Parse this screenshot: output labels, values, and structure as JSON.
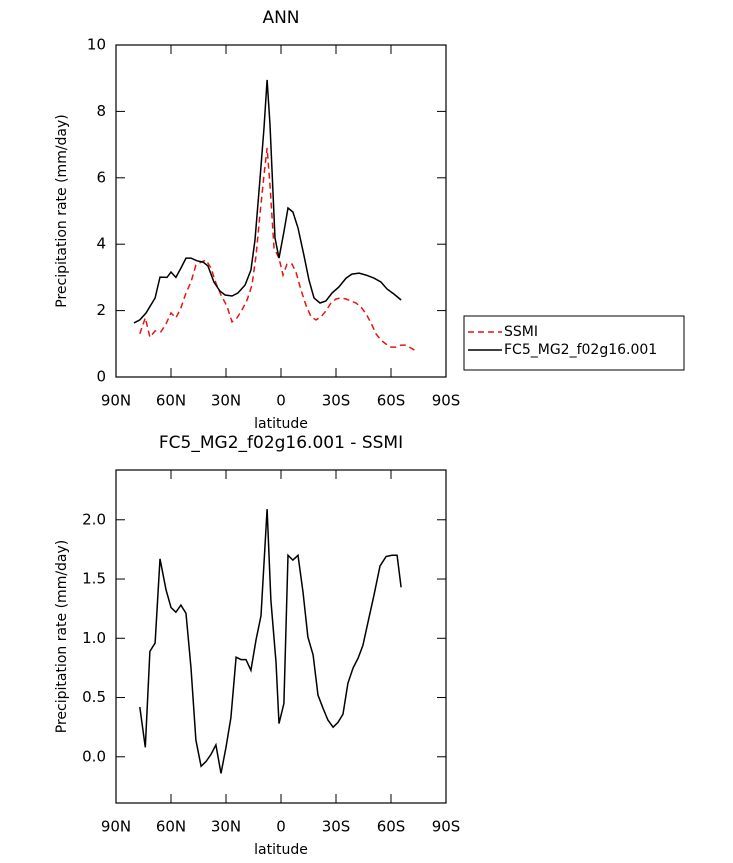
{
  "chart_data": [
    {
      "type": "line",
      "title": "ANN",
      "xlabel": "latitude",
      "ylabel": "Precipitation rate (mm/day)",
      "xlim": [
        90,
        -90
      ],
      "xticks": [
        {
          "value": 90,
          "label": "90N"
        },
        {
          "value": 60,
          "label": "60N"
        },
        {
          "value": 30,
          "label": "30N"
        },
        0,
        {
          "value": -30,
          "label": "30S"
        },
        {
          "value": -60,
          "label": "60S"
        },
        {
          "value": -90,
          "label": "90S"
        }
      ],
      "ylim": [
        0,
        10
      ],
      "yticks": [
        0,
        2,
        4,
        6,
        8,
        10
      ],
      "legend": "right",
      "series": [
        {
          "name": "SSMI",
          "color": "#e8140f",
          "dash": "dashed",
          "x": [
            77,
            74,
            71.5,
            68.7,
            65.5,
            62.7,
            60,
            57.3,
            54.6,
            51.8,
            49.1,
            46.4,
            43.6,
            40.9,
            38.2,
            35.5,
            32.7,
            29.5,
            26.7,
            24,
            21.3,
            18.5,
            15.8,
            13.6,
            11.5,
            9.3,
            7.6,
            6,
            3.8,
            1.1,
            -1.1,
            -3.3,
            -6,
            -8.2,
            -10.9,
            -13.6,
            -16.4,
            -19.1,
            -21.8,
            -24.5,
            -27.3,
            -30,
            -32.7,
            -35.5,
            -38.2,
            -40.9,
            -43.6,
            -46.4,
            -49.1,
            -51.8,
            -54.5,
            -57.3,
            -60,
            -62.7,
            -65.5,
            -68.2,
            -71,
            -73.6
          ],
          "values": [
            1.3,
            1.78,
            1.2,
            1.39,
            1.36,
            1.6,
            1.93,
            1.78,
            2.08,
            2.53,
            2.86,
            3.37,
            3.46,
            3.52,
            3.28,
            2.83,
            2.47,
            2.14,
            1.66,
            1.78,
            2.02,
            2.32,
            2.77,
            3.67,
            4.88,
            6.08,
            6.9,
            5.78,
            3.89,
            3.58,
            3.07,
            3.4,
            3.4,
            3.16,
            2.62,
            2.17,
            1.81,
            1.72,
            1.81,
            1.99,
            2.23,
            2.35,
            2.38,
            2.35,
            2.29,
            2.23,
            2.11,
            1.9,
            1.63,
            1.3,
            1.11,
            0.99,
            0.9,
            0.9,
            0.96,
            0.96,
            0.87,
            0.78
          ]
        },
        {
          "name": "FC5_MG2_f02g16.001",
          "color": "#000000",
          "dash": "solid",
          "x": [
            80.2,
            77,
            73.6,
            68.7,
            66,
            62.2,
            60,
            57.3,
            54.6,
            51.8,
            49.1,
            45.8,
            42.5,
            39.8,
            36.6,
            33.3,
            30.5,
            26.7,
            23.5,
            19.6,
            16.4,
            14.2,
            11.5,
            9.3,
            7.6,
            6,
            3.3,
            1.1,
            -1.6,
            -3.8,
            -6.5,
            -9.3,
            -12.5,
            -15.3,
            -18,
            -21.3,
            -24.5,
            -27.8,
            -31.6,
            -35.5,
            -38.7,
            -42.6,
            -46.4,
            -50.7,
            -54.5,
            -57.8,
            -61.6,
            -65.5
          ],
          "values": [
            1.63,
            1.72,
            1.93,
            2.38,
            3.01,
            3.0,
            3.16,
            3.0,
            3.28,
            3.58,
            3.58,
            3.5,
            3.46,
            3.34,
            2.86,
            2.59,
            2.47,
            2.44,
            2.53,
            2.77,
            3.22,
            4.13,
            5.93,
            7.5,
            8.95,
            7.6,
            4.19,
            3.58,
            4.37,
            5.09,
            4.97,
            4.49,
            3.67,
            2.92,
            2.38,
            2.23,
            2.29,
            2.53,
            2.71,
            2.98,
            3.1,
            3.13,
            3.07,
            2.98,
            2.86,
            2.65,
            2.5,
            2.32
          ]
        }
      ]
    },
    {
      "type": "line",
      "title": "FC5_MG2_f02g16.001 - SSMI",
      "xlabel": "latitude",
      "ylabel": "Precipitation rate (mm/day)",
      "xlim": [
        90,
        -90
      ],
      "xticks": [
        {
          "value": 90,
          "label": "90N"
        },
        {
          "value": 60,
          "label": "60N"
        },
        {
          "value": 30,
          "label": "30N"
        },
        0,
        {
          "value": -30,
          "label": "30S"
        },
        {
          "value": -60,
          "label": "60S"
        },
        {
          "value": -90,
          "label": "90S"
        }
      ],
      "ylim": [
        -0.39,
        2.42
      ],
      "yticks": [
        {
          "value": 0,
          "label": "0.0"
        },
        {
          "value": 0.5,
          "label": "0.5"
        },
        {
          "value": 1,
          "label": "1.0"
        },
        {
          "value": 1.5,
          "label": "1.5"
        },
        {
          "value": 2,
          "label": "2.0"
        }
      ],
      "color": "#000000",
      "x": [
        77,
        74,
        71.5,
        68.7,
        66,
        62.7,
        60,
        57.3,
        54.6,
        51.8,
        49.1,
        46.4,
        43.6,
        40.9,
        38.2,
        35.5,
        32.7,
        30,
        27.3,
        24.5,
        21.8,
        19.1,
        16.4,
        13.6,
        10.9,
        7.6,
        5.5,
        2.7,
        1.1,
        -1.6,
        -3.8,
        -6.5,
        -9.3,
        -12,
        -14.7,
        -17.5,
        -20.2,
        -22.9,
        -25.6,
        -28.4,
        -31.1,
        -33.8,
        -36.5,
        -39.3,
        -42,
        -44.7,
        -47.5,
        -50.7,
        -54,
        -57.3,
        -60.5,
        -63.3,
        -65.5
      ],
      "values": [
        0.42,
        0.08,
        0.89,
        0.96,
        1.67,
        1.41,
        1.26,
        1.22,
        1.28,
        1.21,
        0.75,
        0.14,
        -0.08,
        -0.04,
        0.02,
        0.1,
        -0.14,
        0.08,
        0.33,
        0.84,
        0.82,
        0.82,
        0.73,
        0.99,
        1.19,
        2.09,
        1.32,
        0.8,
        0.28,
        0.45,
        1.7,
        1.66,
        1.7,
        1.39,
        1.01,
        0.86,
        0.52,
        0.41,
        0.31,
        0.25,
        0.29,
        0.36,
        0.62,
        0.75,
        0.83,
        0.94,
        1.14,
        1.36,
        1.61,
        1.69,
        1.7,
        1.7,
        1.43
      ]
    }
  ]
}
